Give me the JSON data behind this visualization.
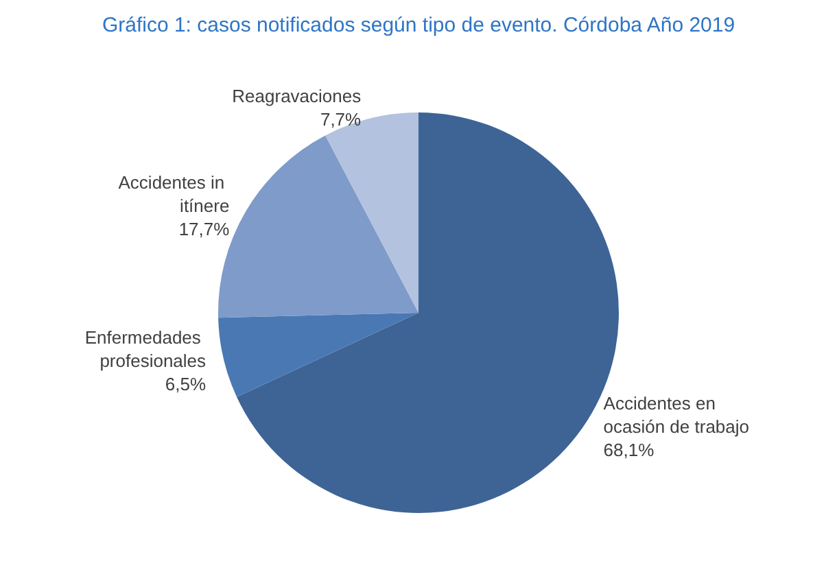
{
  "chart_data": {
    "type": "pie",
    "title": "Gráfico 1: casos notificados según tipo de evento. Córdoba Año 2019",
    "categories": [
      "Accidentes en ocasión de trabajo",
      "Enfermedades profesionales",
      "Accidentes in itínere",
      "Reagravaciones"
    ],
    "values": [
      68.1,
      6.5,
      17.7,
      7.7
    ],
    "colors": [
      "#3e6496",
      "#4a78b3",
      "#7e9bca",
      "#b3c2de"
    ],
    "value_labels": [
      "68,1%",
      "6,5%",
      "17,7%",
      "7,7%"
    ],
    "legend": false
  }
}
